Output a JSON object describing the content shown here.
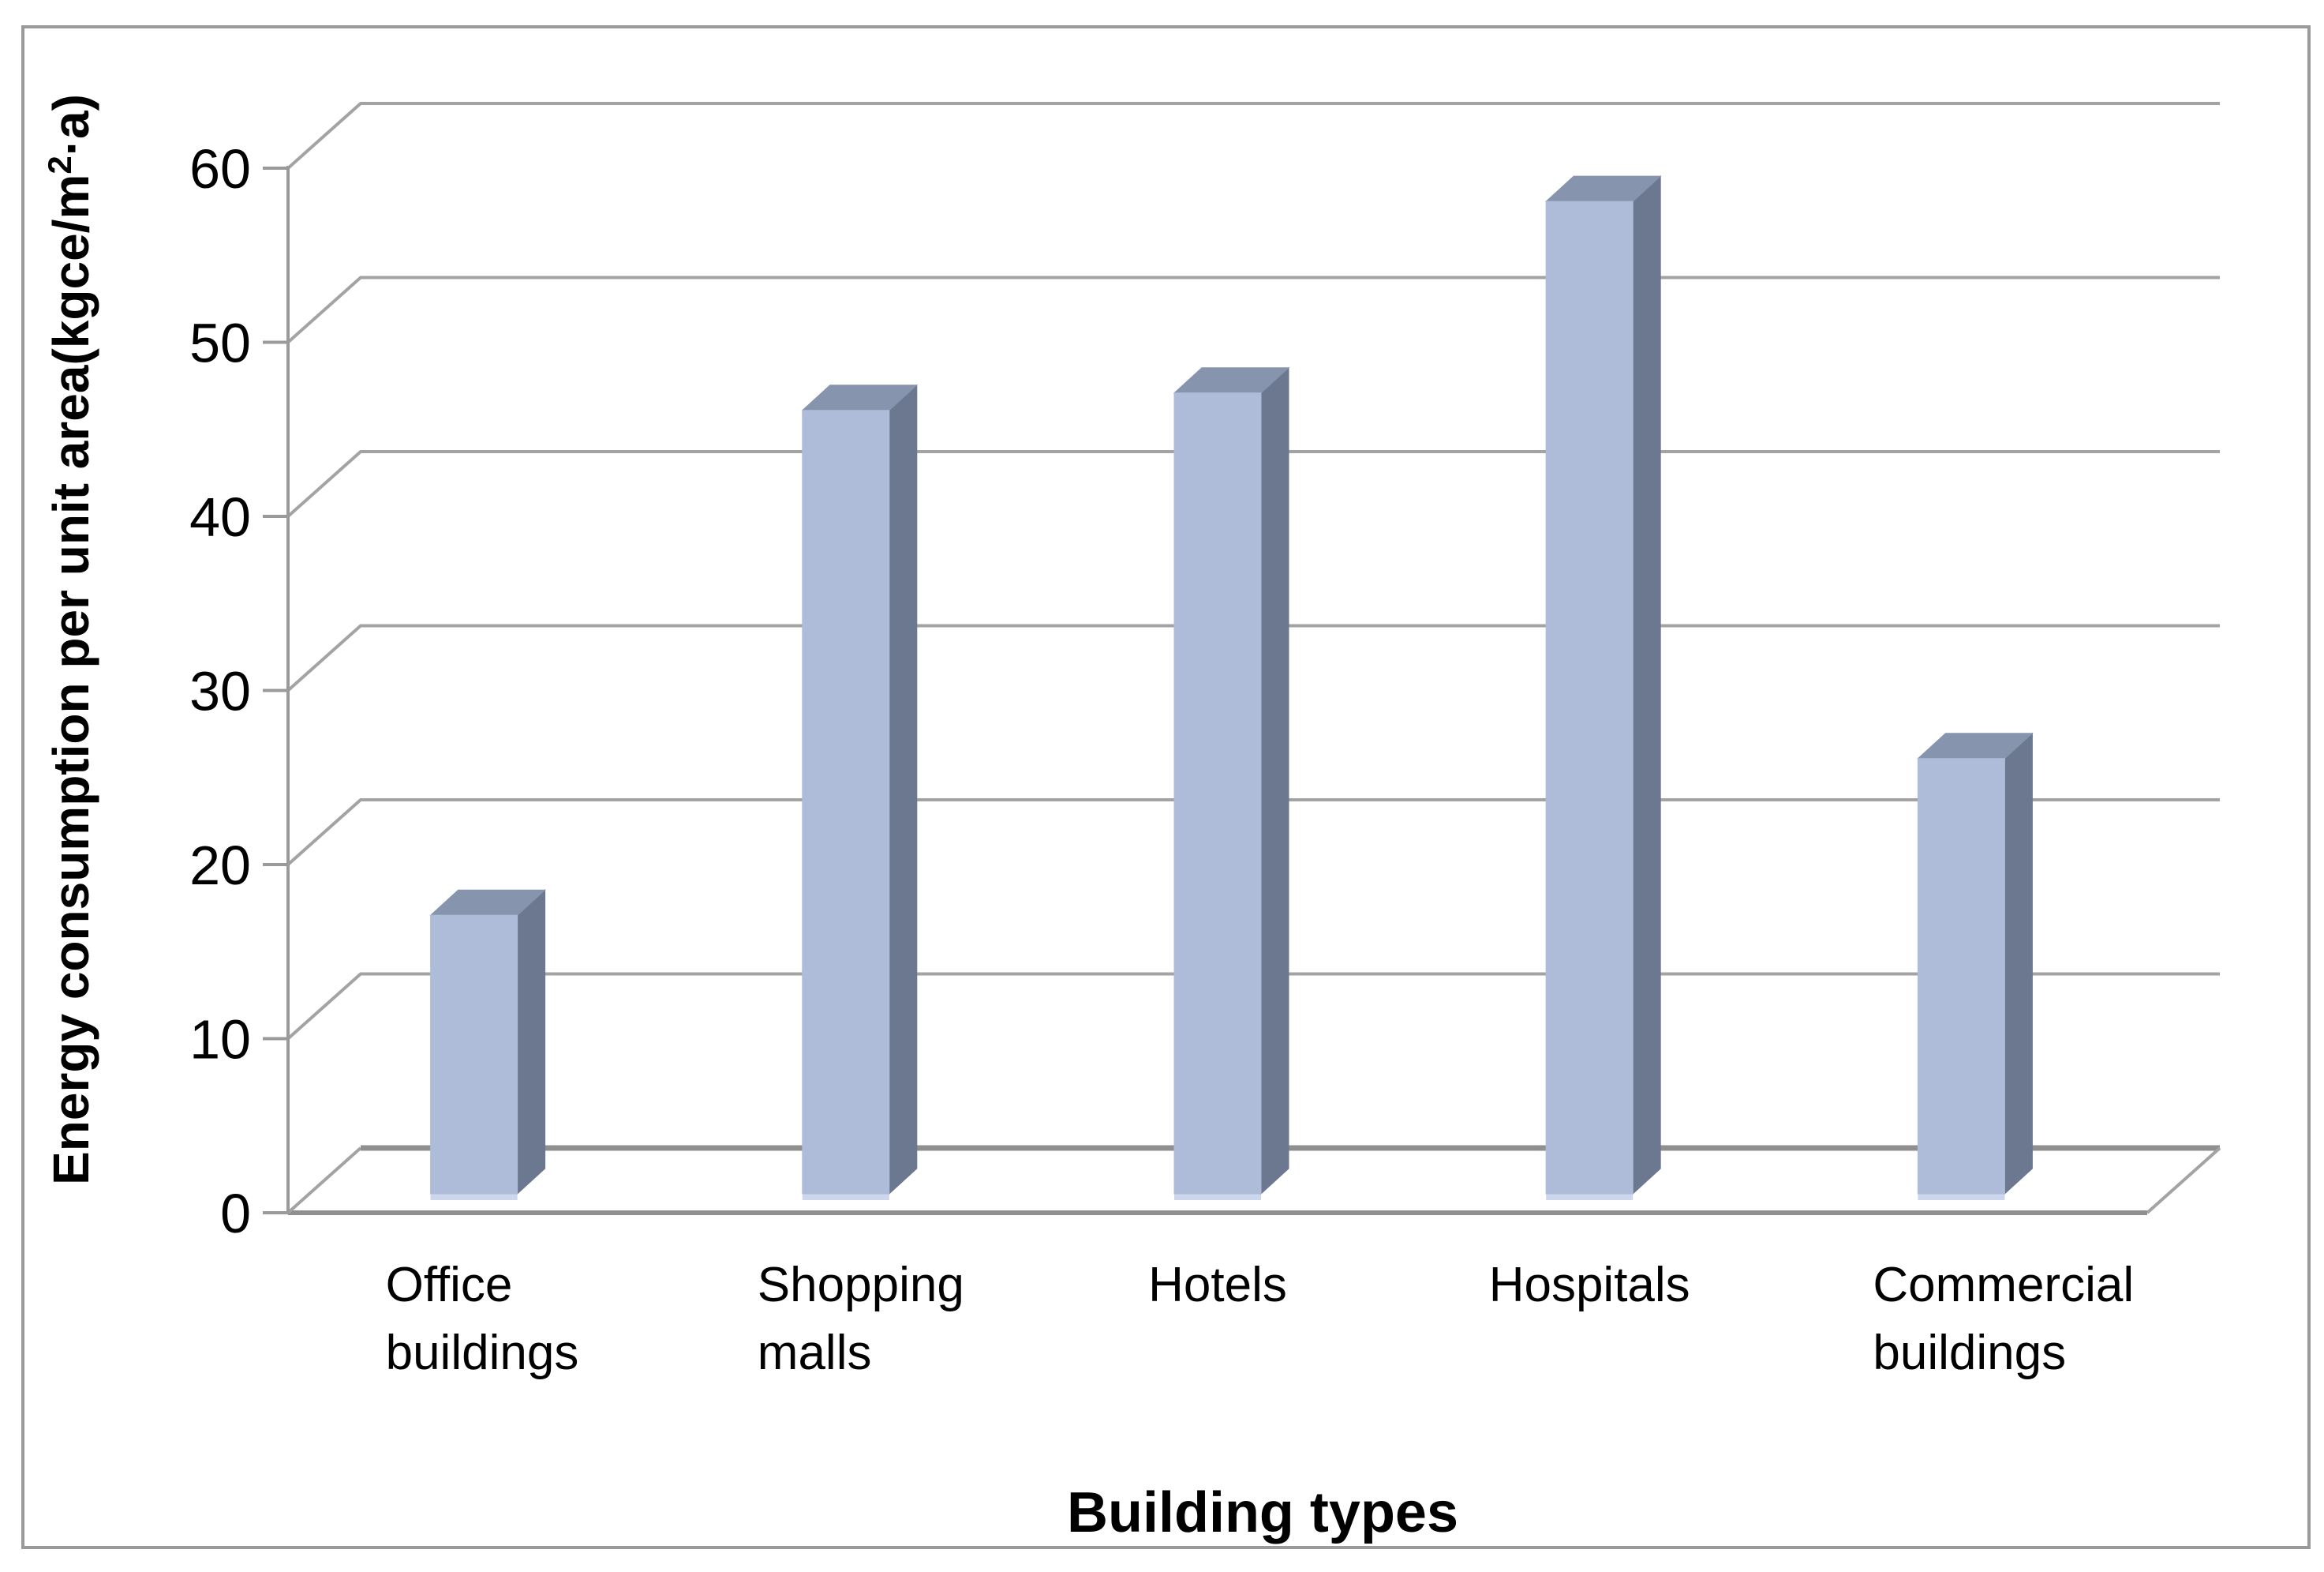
{
  "figure": {
    "background": "#ffffff",
    "border_color": "#9a9a9a"
  },
  "chart_data": {
    "type": "bar",
    "style": "3d-column",
    "title": "",
    "xlabel": "Building types",
    "ylabel": "Energy consumption per unit area(kgce/m²·a)",
    "ylabel_parts": {
      "prefix": "Energy consumption per unit area(kgce/m",
      "superscript": "2",
      "suffix": "·a)"
    },
    "categories": [
      "Office buildings",
      "Shopping malls",
      "Hotels",
      "Hospitals",
      "Commercial buildings"
    ],
    "category_lines": [
      [
        "Office",
        "buildings"
      ],
      [
        "Shopping",
        "malls"
      ],
      [
        "Hotels"
      ],
      [
        "Hospitals"
      ],
      [
        "Commercial",
        "buildings"
      ]
    ],
    "values": [
      16,
      45,
      46,
      57,
      25
    ],
    "ylim": [
      0,
      60
    ],
    "ytick_step": 10,
    "yticks": [
      "0",
      "10",
      "20",
      "30",
      "40",
      "50",
      "60"
    ],
    "grid": true,
    "legend": false,
    "colors": {
      "bar_front": "#aebcd9",
      "bar_side": "#6b7890",
      "bar_top": "#8695ad",
      "bar_bottom_glow": "#ccd6ec",
      "gridline": "#a3a3a3",
      "floor_line": "#8f8f8f",
      "axis_line": "#9a9a9a",
      "text": "#000000"
    }
  }
}
